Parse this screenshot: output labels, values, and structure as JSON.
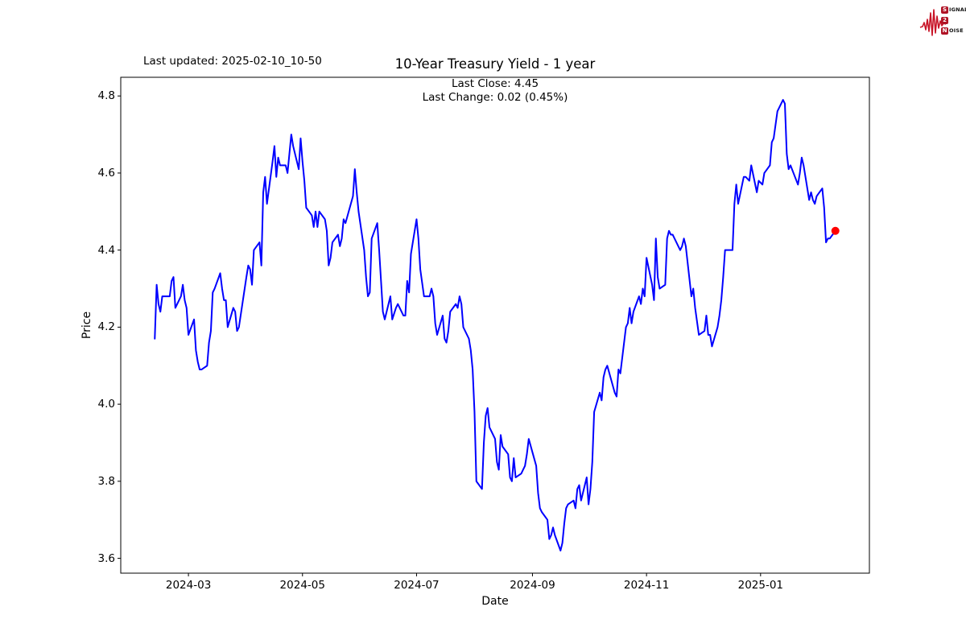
{
  "header": {
    "last_updated": "Last updated: 2025-02-10_10-50",
    "title": "10-Year Treasury Yield - 1 year",
    "subtitle_line1": "Last Close: 4.45",
    "subtitle_line2": "Last Change: 0.02 (0.45%)"
  },
  "logo": {
    "waveform_color": "#c81427",
    "badge_color": "#b01325",
    "rows": [
      {
        "badge": "S",
        "text": "IGNAL"
      },
      {
        "badge": "2",
        "text": ""
      },
      {
        "badge": "N",
        "text": "OISE"
      }
    ]
  },
  "chart_data": {
    "type": "line",
    "title": "10-Year Treasury Yield - 1 year",
    "xlabel": "Date",
    "ylabel": "Price",
    "grid": false,
    "line_color": "#0000ff",
    "line_width": 2,
    "marker_color": "#ff0000",
    "last_close": 4.45,
    "last_change": "0.02 (0.45%)",
    "ylim": [
      3.5615,
      4.8485
    ],
    "x_margin_frac": 0.05,
    "y_ticks": [
      3.6,
      3.8,
      4.0,
      4.2,
      4.4,
      4.6,
      4.8
    ],
    "x_ticks": [
      {
        "label": "2024-03",
        "date": "2024-03-01"
      },
      {
        "label": "2024-05",
        "date": "2024-05-01"
      },
      {
        "label": "2024-07",
        "date": "2024-07-01"
      },
      {
        "label": "2024-09",
        "date": "2024-09-01"
      },
      {
        "label": "2024-11",
        "date": "2024-11-01"
      },
      {
        "label": "2025-01",
        "date": "2025-01-01"
      }
    ],
    "points": [
      [
        "2024-02-12",
        4.17
      ],
      [
        "2024-02-13",
        4.31
      ],
      [
        "2024-02-14",
        4.26
      ],
      [
        "2024-02-15",
        4.24
      ],
      [
        "2024-02-16",
        4.28
      ],
      [
        "2024-02-20",
        4.28
      ],
      [
        "2024-02-21",
        4.32
      ],
      [
        "2024-02-22",
        4.33
      ],
      [
        "2024-02-23",
        4.25
      ],
      [
        "2024-02-26",
        4.28
      ],
      [
        "2024-02-27",
        4.31
      ],
      [
        "2024-02-28",
        4.27
      ],
      [
        "2024-02-29",
        4.25
      ],
      [
        "2024-03-01",
        4.18
      ],
      [
        "2024-03-04",
        4.22
      ],
      [
        "2024-03-05",
        4.14
      ],
      [
        "2024-03-06",
        4.11
      ],
      [
        "2024-03-07",
        4.09
      ],
      [
        "2024-03-08",
        4.09
      ],
      [
        "2024-03-11",
        4.1
      ],
      [
        "2024-03-12",
        4.16
      ],
      [
        "2024-03-13",
        4.19
      ],
      [
        "2024-03-14",
        4.29
      ],
      [
        "2024-03-15",
        4.3
      ],
      [
        "2024-03-18",
        4.34
      ],
      [
        "2024-03-19",
        4.3
      ],
      [
        "2024-03-20",
        4.27
      ],
      [
        "2024-03-21",
        4.27
      ],
      [
        "2024-03-22",
        4.2
      ],
      [
        "2024-03-25",
        4.25
      ],
      [
        "2024-03-26",
        4.24
      ],
      [
        "2024-03-27",
        4.19
      ],
      [
        "2024-03-28",
        4.2
      ],
      [
        "2024-04-01",
        4.33
      ],
      [
        "2024-04-02",
        4.36
      ],
      [
        "2024-04-03",
        4.35
      ],
      [
        "2024-04-04",
        4.31
      ],
      [
        "2024-04-05",
        4.4
      ],
      [
        "2024-04-08",
        4.42
      ],
      [
        "2024-04-09",
        4.36
      ],
      [
        "2024-04-10",
        4.55
      ],
      [
        "2024-04-11",
        4.59
      ],
      [
        "2024-04-12",
        4.52
      ],
      [
        "2024-04-15",
        4.63
      ],
      [
        "2024-04-16",
        4.67
      ],
      [
        "2024-04-17",
        4.59
      ],
      [
        "2024-04-18",
        4.64
      ],
      [
        "2024-04-19",
        4.62
      ],
      [
        "2024-04-22",
        4.62
      ],
      [
        "2024-04-23",
        4.6
      ],
      [
        "2024-04-24",
        4.65
      ],
      [
        "2024-04-25",
        4.7
      ],
      [
        "2024-04-26",
        4.67
      ],
      [
        "2024-04-29",
        4.61
      ],
      [
        "2024-04-30",
        4.69
      ],
      [
        "2024-05-01",
        4.63
      ],
      [
        "2024-05-02",
        4.58
      ],
      [
        "2024-05-03",
        4.51
      ],
      [
        "2024-05-06",
        4.49
      ],
      [
        "2024-05-07",
        4.46
      ],
      [
        "2024-05-08",
        4.5
      ],
      [
        "2024-05-09",
        4.46
      ],
      [
        "2024-05-10",
        4.5
      ],
      [
        "2024-05-13",
        4.48
      ],
      [
        "2024-05-14",
        4.45
      ],
      [
        "2024-05-15",
        4.36
      ],
      [
        "2024-05-16",
        4.38
      ],
      [
        "2024-05-17",
        4.42
      ],
      [
        "2024-05-20",
        4.44
      ],
      [
        "2024-05-21",
        4.41
      ],
      [
        "2024-05-22",
        4.43
      ],
      [
        "2024-05-23",
        4.48
      ],
      [
        "2024-05-24",
        4.47
      ],
      [
        "2024-05-28",
        4.54
      ],
      [
        "2024-05-29",
        4.61
      ],
      [
        "2024-05-30",
        4.55
      ],
      [
        "2024-05-31",
        4.5
      ],
      [
        "2024-06-03",
        4.4
      ],
      [
        "2024-06-04",
        4.33
      ],
      [
        "2024-06-05",
        4.28
      ],
      [
        "2024-06-06",
        4.29
      ],
      [
        "2024-06-07",
        4.43
      ],
      [
        "2024-06-10",
        4.47
      ],
      [
        "2024-06-11",
        4.4
      ],
      [
        "2024-06-12",
        4.32
      ],
      [
        "2024-06-13",
        4.24
      ],
      [
        "2024-06-14",
        4.22
      ],
      [
        "2024-06-17",
        4.28
      ],
      [
        "2024-06-18",
        4.22
      ],
      [
        "2024-06-20",
        4.25
      ],
      [
        "2024-06-21",
        4.26
      ],
      [
        "2024-06-24",
        4.23
      ],
      [
        "2024-06-25",
        4.23
      ],
      [
        "2024-06-26",
        4.32
      ],
      [
        "2024-06-27",
        4.29
      ],
      [
        "2024-06-28",
        4.39
      ],
      [
        "2024-07-01",
        4.48
      ],
      [
        "2024-07-02",
        4.43
      ],
      [
        "2024-07-03",
        4.35
      ],
      [
        "2024-07-05",
        4.28
      ],
      [
        "2024-07-08",
        4.28
      ],
      [
        "2024-07-09",
        4.3
      ],
      [
        "2024-07-10",
        4.28
      ],
      [
        "2024-07-11",
        4.21
      ],
      [
        "2024-07-12",
        4.18
      ],
      [
        "2024-07-15",
        4.23
      ],
      [
        "2024-07-16",
        4.17
      ],
      [
        "2024-07-17",
        4.16
      ],
      [
        "2024-07-18",
        4.19
      ],
      [
        "2024-07-19",
        4.24
      ],
      [
        "2024-07-22",
        4.26
      ],
      [
        "2024-07-23",
        4.25
      ],
      [
        "2024-07-24",
        4.28
      ],
      [
        "2024-07-25",
        4.26
      ],
      [
        "2024-07-26",
        4.2
      ],
      [
        "2024-07-29",
        4.17
      ],
      [
        "2024-07-30",
        4.14
      ],
      [
        "2024-07-31",
        4.09
      ],
      [
        "2024-08-01",
        3.98
      ],
      [
        "2024-08-02",
        3.8
      ],
      [
        "2024-08-05",
        3.78
      ],
      [
        "2024-08-06",
        3.9
      ],
      [
        "2024-08-07",
        3.97
      ],
      [
        "2024-08-08",
        3.99
      ],
      [
        "2024-08-09",
        3.94
      ],
      [
        "2024-08-12",
        3.91
      ],
      [
        "2024-08-13",
        3.85
      ],
      [
        "2024-08-14",
        3.83
      ],
      [
        "2024-08-15",
        3.92
      ],
      [
        "2024-08-16",
        3.89
      ],
      [
        "2024-08-19",
        3.87
      ],
      [
        "2024-08-20",
        3.81
      ],
      [
        "2024-08-21",
        3.8
      ],
      [
        "2024-08-22",
        3.86
      ],
      [
        "2024-08-23",
        3.81
      ],
      [
        "2024-08-26",
        3.82
      ],
      [
        "2024-08-27",
        3.83
      ],
      [
        "2024-08-28",
        3.84
      ],
      [
        "2024-08-29",
        3.87
      ],
      [
        "2024-08-30",
        3.91
      ],
      [
        "2024-09-03",
        3.84
      ],
      [
        "2024-09-04",
        3.77
      ],
      [
        "2024-09-05",
        3.73
      ],
      [
        "2024-09-06",
        3.72
      ],
      [
        "2024-09-09",
        3.7
      ],
      [
        "2024-09-10",
        3.65
      ],
      [
        "2024-09-11",
        3.66
      ],
      [
        "2024-09-12",
        3.68
      ],
      [
        "2024-09-13",
        3.66
      ],
      [
        "2024-09-16",
        3.62
      ],
      [
        "2024-09-17",
        3.64
      ],
      [
        "2024-09-18",
        3.69
      ],
      [
        "2024-09-19",
        3.73
      ],
      [
        "2024-09-20",
        3.74
      ],
      [
        "2024-09-23",
        3.75
      ],
      [
        "2024-09-24",
        3.73
      ],
      [
        "2024-09-25",
        3.78
      ],
      [
        "2024-09-26",
        3.79
      ],
      [
        "2024-09-27",
        3.75
      ],
      [
        "2024-09-30",
        3.81
      ],
      [
        "2024-10-01",
        3.74
      ],
      [
        "2024-10-02",
        3.78
      ],
      [
        "2024-10-03",
        3.85
      ],
      [
        "2024-10-04",
        3.98
      ],
      [
        "2024-10-07",
        4.03
      ],
      [
        "2024-10-08",
        4.01
      ],
      [
        "2024-10-09",
        4.07
      ],
      [
        "2024-10-10",
        4.09
      ],
      [
        "2024-10-11",
        4.1
      ],
      [
        "2024-10-15",
        4.03
      ],
      [
        "2024-10-16",
        4.02
      ],
      [
        "2024-10-17",
        4.09
      ],
      [
        "2024-10-18",
        4.08
      ],
      [
        "2024-10-21",
        4.2
      ],
      [
        "2024-10-22",
        4.21
      ],
      [
        "2024-10-23",
        4.25
      ],
      [
        "2024-10-24",
        4.21
      ],
      [
        "2024-10-25",
        4.24
      ],
      [
        "2024-10-28",
        4.28
      ],
      [
        "2024-10-29",
        4.26
      ],
      [
        "2024-10-30",
        4.3
      ],
      [
        "2024-10-31",
        4.28
      ],
      [
        "2024-11-01",
        4.38
      ],
      [
        "2024-11-04",
        4.31
      ],
      [
        "2024-11-05",
        4.27
      ],
      [
        "2024-11-06",
        4.43
      ],
      [
        "2024-11-07",
        4.33
      ],
      [
        "2024-11-08",
        4.3
      ],
      [
        "2024-11-11",
        4.31
      ],
      [
        "2024-11-12",
        4.43
      ],
      [
        "2024-11-13",
        4.45
      ],
      [
        "2024-11-14",
        4.44
      ],
      [
        "2024-11-15",
        4.44
      ],
      [
        "2024-11-18",
        4.41
      ],
      [
        "2024-11-19",
        4.4
      ],
      [
        "2024-11-20",
        4.41
      ],
      [
        "2024-11-21",
        4.43
      ],
      [
        "2024-11-22",
        4.41
      ],
      [
        "2024-11-25",
        4.28
      ],
      [
        "2024-11-26",
        4.3
      ],
      [
        "2024-11-27",
        4.25
      ],
      [
        "2024-11-29",
        4.18
      ],
      [
        "2024-12-02",
        4.19
      ],
      [
        "2024-12-03",
        4.23
      ],
      [
        "2024-12-04",
        4.18
      ],
      [
        "2024-12-05",
        4.18
      ],
      [
        "2024-12-06",
        4.15
      ],
      [
        "2024-12-09",
        4.2
      ],
      [
        "2024-12-10",
        4.23
      ],
      [
        "2024-12-11",
        4.27
      ],
      [
        "2024-12-12",
        4.33
      ],
      [
        "2024-12-13",
        4.4
      ],
      [
        "2024-12-16",
        4.4
      ],
      [
        "2024-12-17",
        4.4
      ],
      [
        "2024-12-18",
        4.52
      ],
      [
        "2024-12-19",
        4.57
      ],
      [
        "2024-12-20",
        4.52
      ],
      [
        "2024-12-23",
        4.59
      ],
      [
        "2024-12-24",
        4.59
      ],
      [
        "2024-12-26",
        4.58
      ],
      [
        "2024-12-27",
        4.62
      ],
      [
        "2024-12-30",
        4.55
      ],
      [
        "2024-12-31",
        4.58
      ],
      [
        "2025-01-02",
        4.57
      ],
      [
        "2025-01-03",
        4.6
      ],
      [
        "2025-01-06",
        4.62
      ],
      [
        "2025-01-07",
        4.68
      ],
      [
        "2025-01-08",
        4.69
      ],
      [
        "2025-01-10",
        4.76
      ],
      [
        "2025-01-13",
        4.79
      ],
      [
        "2025-01-14",
        4.78
      ],
      [
        "2025-01-15",
        4.65
      ],
      [
        "2025-01-16",
        4.61
      ],
      [
        "2025-01-17",
        4.62
      ],
      [
        "2025-01-21",
        4.57
      ],
      [
        "2025-01-22",
        4.6
      ],
      [
        "2025-01-23",
        4.64
      ],
      [
        "2025-01-24",
        4.62
      ],
      [
        "2025-01-27",
        4.53
      ],
      [
        "2025-01-28",
        4.55
      ],
      [
        "2025-01-29",
        4.53
      ],
      [
        "2025-01-30",
        4.52
      ],
      [
        "2025-01-31",
        4.54
      ],
      [
        "2025-02-03",
        4.56
      ],
      [
        "2025-02-04",
        4.51
      ],
      [
        "2025-02-05",
        4.42
      ],
      [
        "2025-02-06",
        4.43
      ],
      [
        "2025-02-07",
        4.43
      ],
      [
        "2025-02-10",
        4.45
      ]
    ]
  }
}
